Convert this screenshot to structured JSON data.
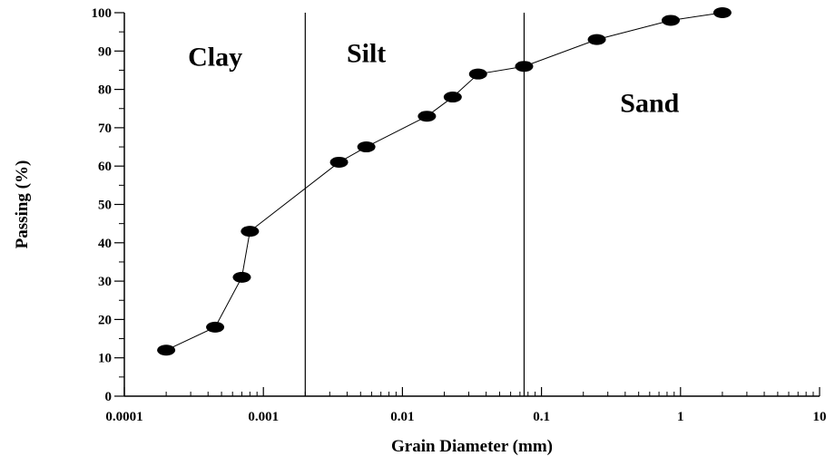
{
  "chart_data": {
    "type": "scatter",
    "xlabel": "Grain Diameter (mm)",
    "ylabel": "Passing (%)",
    "xscale": "log",
    "xlim": [
      0.0001,
      10
    ],
    "ylim": [
      0,
      100
    ],
    "x_ticks": [
      {
        "value": 0.0001,
        "label": "0.0001"
      },
      {
        "value": 0.001,
        "label": "0.001"
      },
      {
        "value": 0.01,
        "label": "0.01"
      },
      {
        "value": 0.1,
        "label": "0.1"
      },
      {
        "value": 1,
        "label": "1"
      },
      {
        "value": 10,
        "label": "10"
      }
    ],
    "y_ticks": [
      {
        "value": 0,
        "label": "0"
      },
      {
        "value": 10,
        "label": "10"
      },
      {
        "value": 20,
        "label": "20"
      },
      {
        "value": 30,
        "label": "30"
      },
      {
        "value": 40,
        "label": "40"
      },
      {
        "value": 50,
        "label": "50"
      },
      {
        "value": 60,
        "label": "60"
      },
      {
        "value": 70,
        "label": "70"
      },
      {
        "value": 80,
        "label": "80"
      },
      {
        "value": 90,
        "label": "90"
      },
      {
        "value": 100,
        "label": "100"
      }
    ],
    "grid": false,
    "series": [
      {
        "points": [
          {
            "x": 0.0002,
            "y": 12
          },
          {
            "x": 0.00045,
            "y": 18
          },
          {
            "x": 0.0007,
            "y": 31
          },
          {
            "x": 0.0008,
            "y": 43
          },
          {
            "x": 0.0035,
            "y": 61
          },
          {
            "x": 0.0055,
            "y": 65
          },
          {
            "x": 0.015,
            "y": 73
          },
          {
            "x": 0.023,
            "y": 78
          },
          {
            "x": 0.035,
            "y": 84
          },
          {
            "x": 0.075,
            "y": 86
          },
          {
            "x": 0.25,
            "y": 93
          },
          {
            "x": 0.85,
            "y": 98
          },
          {
            "x": 2.0,
            "y": 100
          }
        ],
        "color": "#000000"
      }
    ],
    "boundaries": [
      {
        "x": 0.002
      },
      {
        "x": 0.075
      }
    ],
    "region_labels": [
      {
        "text": "Clay",
        "x": 0.00045,
        "y": 88.5
      },
      {
        "text": "Silt",
        "x": 0.0055,
        "y": 89.5
      },
      {
        "text": "Sand",
        "x": 0.6,
        "y": 76.5
      }
    ]
  }
}
